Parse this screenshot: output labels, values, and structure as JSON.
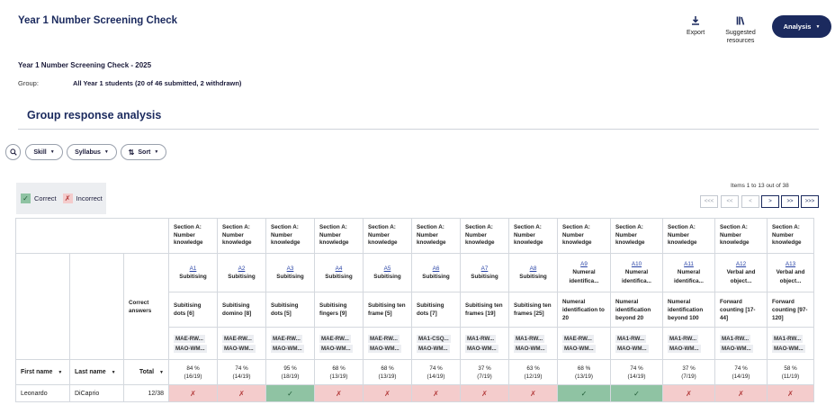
{
  "header": {
    "title": "Year 1 Number Screening Check",
    "export_label": "Export",
    "suggested_line1": "Suggested",
    "suggested_line2": "resources",
    "analysis_label": "Analysis"
  },
  "report": {
    "title": "Year 1 Number Screening Check - 2025",
    "group_label": "Group:",
    "group_value": "All Year 1 students (20 of 46 submitted, 2 withdrawn)"
  },
  "section_title": "Group response analysis",
  "filters": {
    "skill": "Skill",
    "syllabus": "Syllabus",
    "sort": "Sort"
  },
  "legend": {
    "correct": "Correct",
    "incorrect": "Incorrect"
  },
  "pagination": {
    "summary": "Items 1 to 13 out of 38",
    "first": "<<<",
    "prev2": "<<",
    "prev": "<",
    "next": ">",
    "next2": ">>",
    "last": ">>>"
  },
  "table": {
    "correct_answers": "Correct answers",
    "first_name": "First name",
    "last_name": "Last name",
    "total": "Total",
    "questions": [
      {
        "section": "Section A: Number knowledge",
        "id": "A1",
        "name": "Subitising",
        "label": "Subitising dots [6]",
        "code1": "MAE-RW...",
        "code2": "MAO-WM...",
        "pct": "84 %",
        "frac": "(16/19)"
      },
      {
        "section": "Section A: Number knowledge",
        "id": "A2",
        "name": "Subitising",
        "label": "Subitising domino [8]",
        "code1": "MAE-RW...",
        "code2": "MAO-WM...",
        "pct": "74 %",
        "frac": "(14/19)"
      },
      {
        "section": "Section A: Number knowledge",
        "id": "A3",
        "name": "Subitising",
        "label": "Subitising dots [5]",
        "code1": "MAE-RW...",
        "code2": "MAO-WM...",
        "pct": "95 %",
        "frac": "(18/19)"
      },
      {
        "section": "Section A: Number knowledge",
        "id": "A4",
        "name": "Subitising",
        "label": "Subitising fingers [9]",
        "code1": "MAE-RW...",
        "code2": "MAO-WM...",
        "pct": "68 %",
        "frac": "(13/19)"
      },
      {
        "section": "Section A: Number knowledge",
        "id": "A5",
        "name": "Subitising",
        "label": "Subitising ten frame [5]",
        "code1": "MAE-RW...",
        "code2": "MAO-WM...",
        "pct": "68 %",
        "frac": "(13/19)"
      },
      {
        "section": "Section A: Number knowledge",
        "id": "A6",
        "name": "Subitising",
        "label": "Subitising dots [7]",
        "code1": "MA1-CSQ...",
        "code2": "MAO-WM...",
        "pct": "74 %",
        "frac": "(14/19)"
      },
      {
        "section": "Section A: Number knowledge",
        "id": "A7",
        "name": "Subitising",
        "label": "Subitising ten frames [19]",
        "code1": "MA1-RW...",
        "code2": "MAO-WM...",
        "pct": "37 %",
        "frac": "(7/19)"
      },
      {
        "section": "Section A: Number knowledge",
        "id": "A8",
        "name": "Subitising",
        "label": "Subitising ten frames [25]",
        "code1": "MA1-RW...",
        "code2": "MAO-WM...",
        "pct": "63 %",
        "frac": "(12/19)"
      },
      {
        "section": "Section A: Number knowledge",
        "id": "A9",
        "name": "Numeral identifica...",
        "label": "Numeral identification to 20",
        "code1": "MAE-RW...",
        "code2": "MAO-WM...",
        "pct": "68 %",
        "frac": "(13/19)"
      },
      {
        "section": "Section A: Number knowledge",
        "id": "A10",
        "name": "Numeral identifica...",
        "label": "Numeral identification beyond 20",
        "code1": "MA1-RW...",
        "code2": "MAO-WM...",
        "pct": "74 %",
        "frac": "(14/19)"
      },
      {
        "section": "Section A: Number knowledge",
        "id": "A11",
        "name": "Numeral identifica...",
        "label": "Numeral identification beyond 100",
        "code1": "MA1-RW...",
        "code2": "MAO-WM...",
        "pct": "37 %",
        "frac": "(7/19)"
      },
      {
        "section": "Section A: Number knowledge",
        "id": "A12",
        "name": "Verbal and object...",
        "label": "Forward counting [17-44]",
        "code1": "MA1-RW...",
        "code2": "MAO-WM...",
        "pct": "74 %",
        "frac": "(14/19)"
      },
      {
        "section": "Section A: Number knowledge",
        "id": "A13",
        "name": "Verbal and object...",
        "label": "Forward counting [97-120]",
        "code1": "MA1-RW...",
        "code2": "MAO-WM...",
        "pct": "58 %",
        "frac": "(11/19)"
      }
    ],
    "students": [
      {
        "first": "Leonardo",
        "last": "DiCaprio",
        "total": "12/38",
        "results": [
          false,
          false,
          true,
          false,
          false,
          false,
          false,
          false,
          true,
          true,
          false,
          false,
          false
        ]
      }
    ]
  },
  "colors": {
    "brand": "#1b2a5e",
    "correct": "#8fc3a3",
    "incorrect": "#f4cccc"
  }
}
